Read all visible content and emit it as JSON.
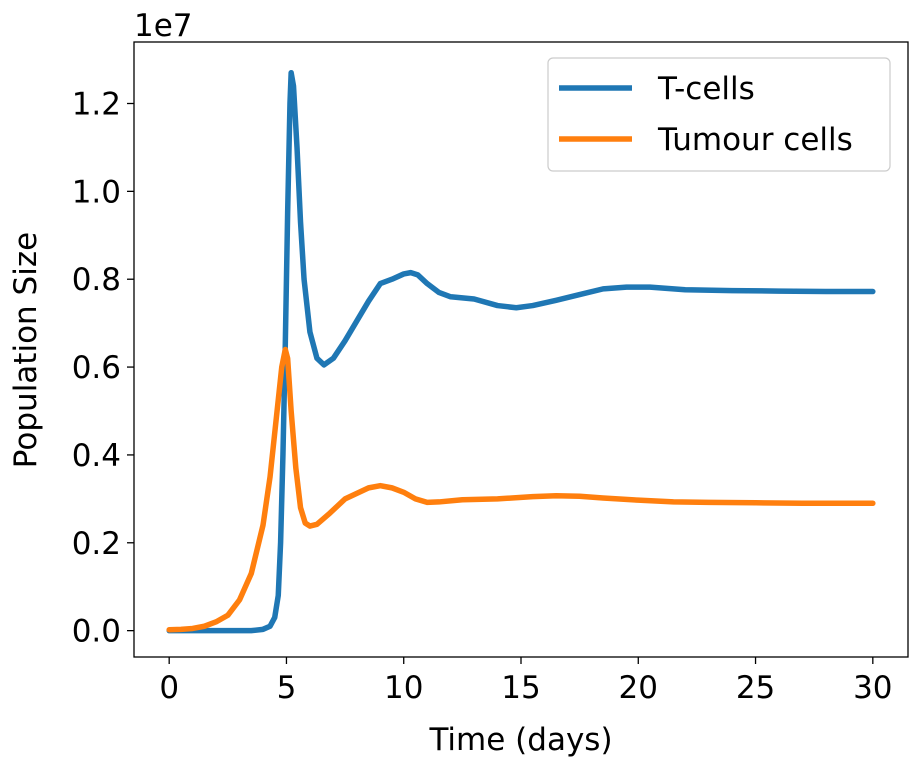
{
  "chart_data": {
    "type": "line",
    "title": "",
    "xlabel": "Time (days)",
    "ylabel": "Population Size",
    "y_offset_label": "1e7",
    "xlim": [
      -1.5,
      31.5
    ],
    "ylim": [
      -0.06,
      1.34
    ],
    "y_scale": 10000000,
    "x_ticks": [
      0,
      5,
      10,
      15,
      20,
      25,
      30
    ],
    "y_ticks": [
      0.0,
      0.2,
      0.4,
      0.6,
      0.8,
      1.0,
      1.2
    ],
    "y_tick_labels": [
      "0.0",
      "0.2",
      "0.4",
      "0.6",
      "0.8",
      "1.0",
      "1.2"
    ],
    "grid": false,
    "legend_position": "top-right",
    "series": [
      {
        "name": "T-cells",
        "color": "#1f77b4",
        "points": [
          [
            0,
            0.0
          ],
          [
            1,
            0.0
          ],
          [
            2,
            0.0
          ],
          [
            3,
            0.0
          ],
          [
            3.5,
            0.0
          ],
          [
            4.0,
            0.003
          ],
          [
            4.3,
            0.01
          ],
          [
            4.5,
            0.03
          ],
          [
            4.65,
            0.08
          ],
          [
            4.75,
            0.2
          ],
          [
            4.85,
            0.4
          ],
          [
            4.95,
            0.65
          ],
          [
            5.05,
            0.95
          ],
          [
            5.15,
            1.2
          ],
          [
            5.2,
            1.27
          ],
          [
            5.3,
            1.24
          ],
          [
            5.45,
            1.1
          ],
          [
            5.6,
            0.93
          ],
          [
            5.75,
            0.8
          ],
          [
            6.0,
            0.68
          ],
          [
            6.3,
            0.62
          ],
          [
            6.6,
            0.605
          ],
          [
            7.0,
            0.62
          ],
          [
            7.5,
            0.66
          ],
          [
            8.0,
            0.705
          ],
          [
            8.5,
            0.75
          ],
          [
            9.0,
            0.79
          ],
          [
            9.5,
            0.8
          ],
          [
            10.0,
            0.812
          ],
          [
            10.3,
            0.815
          ],
          [
            10.6,
            0.81
          ],
          [
            11.0,
            0.79
          ],
          [
            11.5,
            0.77
          ],
          [
            12.0,
            0.76
          ],
          [
            13.0,
            0.755
          ],
          [
            14.0,
            0.74
          ],
          [
            14.8,
            0.735
          ],
          [
            15.5,
            0.74
          ],
          [
            16.5,
            0.752
          ],
          [
            17.5,
            0.765
          ],
          [
            18.5,
            0.778
          ],
          [
            19.5,
            0.782
          ],
          [
            20.5,
            0.782
          ],
          [
            22.0,
            0.776
          ],
          [
            24.0,
            0.774
          ],
          [
            26.0,
            0.773
          ],
          [
            28.0,
            0.772
          ],
          [
            30.0,
            0.772
          ]
        ]
      },
      {
        "name": "Tumour cells",
        "color": "#ff7f0e",
        "points": [
          [
            0,
            0.002
          ],
          [
            0.5,
            0.003
          ],
          [
            1.0,
            0.005
          ],
          [
            1.5,
            0.01
          ],
          [
            2.0,
            0.02
          ],
          [
            2.5,
            0.035
          ],
          [
            3.0,
            0.07
          ],
          [
            3.5,
            0.13
          ],
          [
            4.0,
            0.24
          ],
          [
            4.3,
            0.35
          ],
          [
            4.6,
            0.5
          ],
          [
            4.8,
            0.6
          ],
          [
            4.95,
            0.64
          ],
          [
            5.05,
            0.62
          ],
          [
            5.2,
            0.5
          ],
          [
            5.4,
            0.37
          ],
          [
            5.6,
            0.28
          ],
          [
            5.8,
            0.245
          ],
          [
            6.0,
            0.238
          ],
          [
            6.3,
            0.242
          ],
          [
            6.8,
            0.265
          ],
          [
            7.5,
            0.3
          ],
          [
            8.5,
            0.325
          ],
          [
            9.0,
            0.33
          ],
          [
            9.5,
            0.325
          ],
          [
            10.0,
            0.315
          ],
          [
            10.5,
            0.3
          ],
          [
            11.0,
            0.292
          ],
          [
            11.5,
            0.293
          ],
          [
            12.5,
            0.298
          ],
          [
            14.0,
            0.3
          ],
          [
            15.5,
            0.305
          ],
          [
            16.5,
            0.307
          ],
          [
            17.5,
            0.306
          ],
          [
            18.5,
            0.302
          ],
          [
            20.0,
            0.297
          ],
          [
            21.5,
            0.293
          ],
          [
            23.0,
            0.292
          ],
          [
            25.0,
            0.291
          ],
          [
            27.0,
            0.29
          ],
          [
            29.0,
            0.29
          ],
          [
            30.0,
            0.29
          ]
        ]
      }
    ]
  }
}
